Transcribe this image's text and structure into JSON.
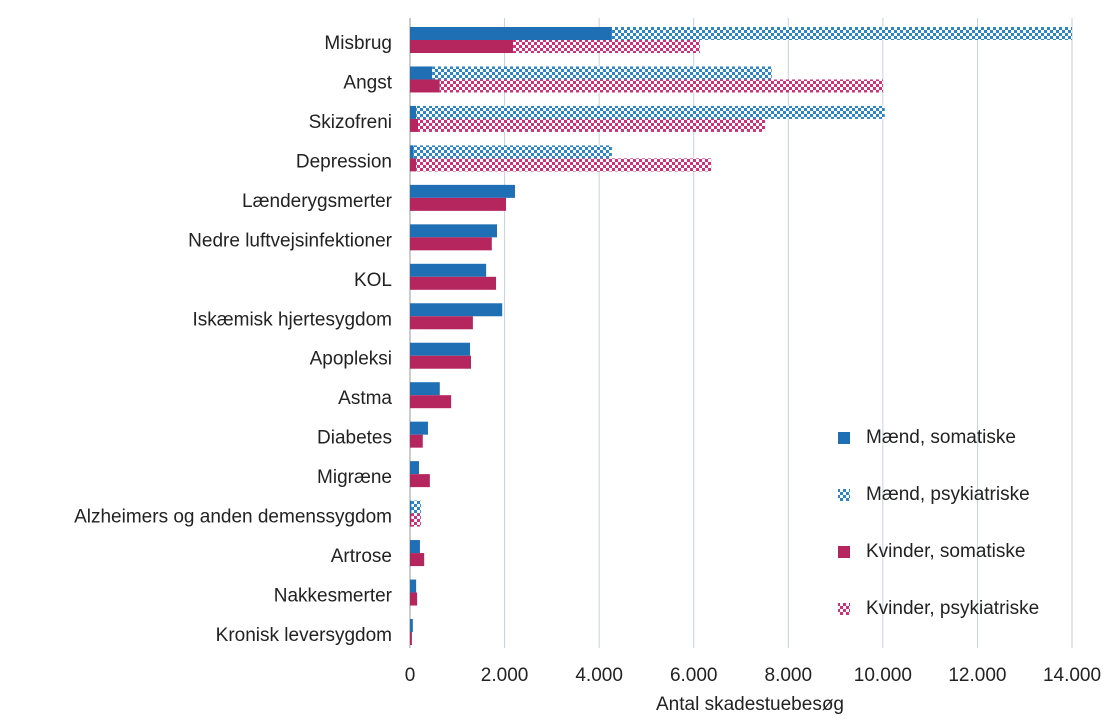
{
  "chart_data": {
    "type": "stacked-barh",
    "xlabel": "Antal skadestuebesøg",
    "categories": [
      "Misbrug",
      "Angst",
      "Skizofreni",
      "Depression",
      "Lænderygsmerter",
      "Nedre luftvejsinfektioner",
      "KOL",
      "Iskæmisk hjertesygdom",
      "Apopleksi",
      "Astma",
      "Diabetes",
      "Migræne",
      "Alzheimers og anden demenssygdom",
      "Artrose",
      "Nakkesmerter",
      "Kronisk leversygdom"
    ],
    "series": [
      {
        "name": "Mænd, somatiske",
        "color": "#1f6fb5",
        "pattern": "solid",
        "stack": 0,
        "values": [
          4270,
          470,
          130,
          80,
          2220,
          1840,
          1610,
          1950,
          1270,
          630,
          380,
          190,
          30,
          210,
          130,
          60
        ]
      },
      {
        "name": "Mænd, psykiatriske",
        "color": "#2a86c8",
        "pattern": "checker",
        "stack": 0,
        "values": [
          9730,
          7180,
          9910,
          4190,
          0,
          0,
          0,
          0,
          0,
          0,
          0,
          0,
          200,
          0,
          0,
          0
        ]
      },
      {
        "name": "Kvinder, somatiske",
        "color": "#b5265f",
        "pattern": "solid",
        "stack": 1,
        "values": [
          2180,
          630,
          170,
          130,
          2030,
          1730,
          1820,
          1330,
          1290,
          870,
          270,
          420,
          30,
          300,
          150,
          40
        ]
      },
      {
        "name": "Kvinder, psykiatriske",
        "color": "#d0307a",
        "pattern": "checker",
        "stack": 1,
        "values": [
          3950,
          9370,
          7340,
          6240,
          0,
          0,
          0,
          0,
          0,
          0,
          0,
          0,
          200,
          0,
          0,
          0
        ]
      }
    ],
    "xlim": [
      0,
      14000
    ],
    "xticks": [
      0,
      {
        "value": 2000,
        "label": "2.000"
      },
      {
        "value": 4000,
        "label": "4.000"
      },
      {
        "value": 6000,
        "label": "6.000"
      },
      {
        "value": 8000,
        "label": "8.000"
      },
      {
        "value": 10000,
        "label": "10.000"
      },
      {
        "value": 12000,
        "label": "12.000"
      },
      {
        "value": 14000,
        "label": "14.000"
      }
    ],
    "grid": true,
    "legend": "lower right"
  }
}
